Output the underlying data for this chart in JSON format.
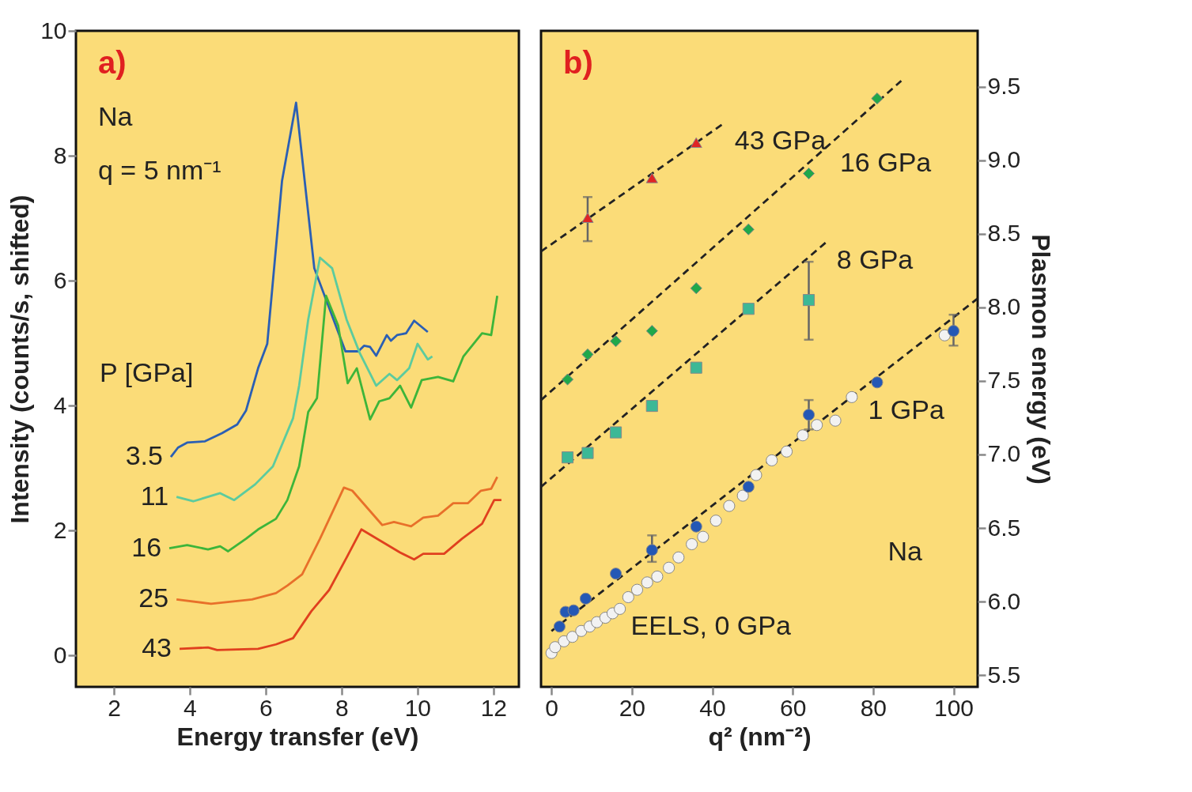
{
  "chart_data": [
    {
      "type": "line",
      "xlabel": "Energy transfer (eV)",
      "ylabel": "Intensity (counts/s, shifted)",
      "legend_title": "P [GPa]",
      "xlim": [
        1,
        12.67
      ],
      "ylim": [
        -0.5,
        10
      ],
      "xticks": [
        2,
        4,
        6,
        8,
        10,
        12
      ],
      "yticks": [
        0,
        2,
        4,
        6,
        8,
        10
      ],
      "annotations": [
        "a)",
        "Na",
        "q = 5 nm⁻¹"
      ],
      "series": [
        {
          "name": "3.5",
          "color": "#2b5fb4",
          "x": [
            3.5,
            3.69,
            3.93,
            4.4,
            4.85,
            5.25,
            5.48,
            5.8,
            6.04,
            6.43,
            6.8,
            7.28,
            8.1,
            8.44,
            8.59,
            8.75,
            8.91,
            9.19,
            9.3,
            9.46,
            9.7,
            9.91,
            10.27
          ],
          "values": [
            3.18,
            3.33,
            3.41,
            3.43,
            3.56,
            3.7,
            3.92,
            4.6,
            4.99,
            7.6,
            8.85,
            6.2,
            4.87,
            4.87,
            4.96,
            4.94,
            4.8,
            5.13,
            5.04,
            5.13,
            5.16,
            5.36,
            5.18
          ]
        },
        {
          "name": "11",
          "color": "#5ccb9e",
          "x": [
            3.65,
            4.09,
            4.8,
            5.17,
            5.72,
            6.19,
            6.72,
            6.88,
            7.12,
            7.43,
            7.75,
            8.13,
            8.48,
            8.91,
            9.26,
            9.46,
            9.78,
            10.0,
            10.27,
            10.39
          ],
          "values": [
            2.54,
            2.47,
            2.6,
            2.49,
            2.74,
            3.03,
            3.8,
            4.32,
            5.38,
            6.37,
            6.2,
            5.38,
            4.84,
            4.32,
            4.51,
            4.41,
            4.6,
            4.99,
            4.74,
            4.79
          ]
        },
        {
          "name": "16",
          "color": "#3db53a",
          "x": [
            3.46,
            3.93,
            4.48,
            4.8,
            5.01,
            5.48,
            5.8,
            6.27,
            6.57,
            6.88,
            7.12,
            7.35,
            7.59,
            7.91,
            8.16,
            8.4,
            8.75,
            8.99,
            9.26,
            9.54,
            9.83,
            10.11,
            10.54,
            10.94,
            11.21,
            11.7,
            11.94,
            12.1
          ],
          "values": [
            1.72,
            1.77,
            1.7,
            1.75,
            1.67,
            1.87,
            2.02,
            2.19,
            2.49,
            3.03,
            3.9,
            4.12,
            5.76,
            5.28,
            4.36,
            4.6,
            3.78,
            4.07,
            4.12,
            4.32,
            3.97,
            4.41,
            4.46,
            4.39,
            4.79,
            5.16,
            5.13,
            5.76
          ]
        },
        {
          "name": "25",
          "color": "#e8702a",
          "x": [
            3.65,
            4.56,
            5.64,
            6.27,
            6.57,
            6.96,
            7.43,
            8.06,
            8.28,
            9.07,
            9.38,
            9.83,
            10.15,
            10.54,
            10.94,
            11.33,
            11.67,
            11.94,
            12.1
          ],
          "values": [
            0.9,
            0.83,
            0.9,
            1.0,
            1.12,
            1.3,
            1.87,
            2.69,
            2.64,
            2.09,
            2.14,
            2.07,
            2.21,
            2.24,
            2.44,
            2.44,
            2.64,
            2.67,
            2.86
          ]
        },
        {
          "name": "43",
          "color": "#e0401e",
          "x": [
            3.73,
            4.48,
            4.72,
            5.8,
            6.27,
            6.72,
            7.2,
            7.67,
            8.14,
            8.52,
            8.99,
            9.54,
            9.91,
            10.15,
            10.7,
            11.17,
            11.7,
            12.02,
            12.21
          ],
          "values": [
            0.11,
            0.13,
            0.09,
            0.11,
            0.18,
            0.28,
            0.71,
            1.05,
            1.58,
            2.02,
            1.85,
            1.65,
            1.54,
            1.63,
            1.63,
            1.87,
            2.11,
            2.49,
            2.49
          ]
        }
      ]
    },
    {
      "type": "scatter",
      "xlabel": "q² (nm⁻²)",
      "ylabel": "Plasmon energy (eV)",
      "xlim": [
        -2.6,
        106
      ],
      "ylim": [
        5.42,
        9.88
      ],
      "xticks": [
        0,
        20,
        40,
        60,
        80,
        100
      ],
      "yticks": [
        {
          "value": 5.5,
          "label": "5.5"
        },
        {
          "value": 6,
          "label": "6.0"
        },
        {
          "value": 6.5,
          "label": "6.5"
        },
        {
          "value": 7,
          "label": "7.0"
        },
        {
          "value": 7.5,
          "label": "7.5"
        },
        {
          "value": 8,
          "label": "8.0"
        },
        {
          "value": 8.5,
          "label": "8.5"
        },
        {
          "value": 9,
          "label": "9.0"
        },
        {
          "value": 9.5,
          "label": "9.5"
        }
      ],
      "annotations": [
        "b)",
        "Na",
        {
          "text": "43 GPa",
          "x": 42.8,
          "y": 9.25
        },
        {
          "text": "16 GPa",
          "x": 69,
          "y": 9.1
        },
        {
          "text": "8 GPa",
          "x": 68.2,
          "y": 8.44
        },
        {
          "text": "1 GPa",
          "x": 76,
          "y": 7.42
        },
        {
          "text": "EELS, 0 GPa",
          "x": 17,
          "y": 5.95
        }
      ],
      "series": [
        {
          "type": "line",
          "color": "#222222",
          "line_style": "dashed",
          "x": [
            -2.6,
            42.8
          ],
          "values": [
            8.38,
            9.25
          ]
        },
        {
          "type": "line",
          "color": "#222222",
          "line_style": "dashed",
          "x": [
            -2.6,
            87
          ],
          "values": [
            7.37,
            9.54
          ]
        },
        {
          "type": "line",
          "color": "#222222",
          "line_style": "dashed",
          "x": [
            -2.6,
            68.2
          ],
          "values": [
            6.78,
            8.44
          ]
        },
        {
          "type": "line",
          "color": "#222222",
          "line_style": "dashed",
          "x": [
            0,
            106
          ],
          "values": [
            5.8,
            8.06
          ]
        },
        {
          "type": "scatter",
          "marker": "circle",
          "color": "#f2f2f2",
          "x": [
            0,
            0.9,
            3.1,
            5.2,
            7.4,
            9.5,
            11.3,
            13.4,
            15.2,
            17,
            19.1,
            21.3,
            23.8,
            26.3,
            29.2,
            31.6,
            34.9,
            37.7,
            40.9,
            44.2,
            47.6,
            50.9,
            54.8,
            58.5,
            62.5,
            66,
            70.6,
            74.7,
            97.8
          ],
          "values": [
            5.65,
            5.69,
            5.73,
            5.76,
            5.8,
            5.83,
            5.86,
            5.89,
            5.92,
            5.95,
            6.03,
            6.08,
            6.13,
            6.17,
            6.23,
            6.3,
            6.39,
            6.44,
            6.55,
            6.65,
            6.72,
            6.86,
            6.96,
            7.02,
            7.13,
            7.2,
            7.23,
            7.39,
            7.81
          ]
        },
        {
          "type": "scatter",
          "marker": "triangle",
          "color": "#e02424",
          "x": [
            9,
            25,
            36
          ],
          "values": [
            8.61,
            8.88,
            9.12
          ],
          "errors": [
            [
              8.45,
              8.75
            ],
            null,
            null
          ]
        },
        {
          "type": "scatter",
          "marker": "diamond",
          "color": "#1fa84a",
          "x": [
            4,
            9,
            16,
            25,
            36,
            49,
            64,
            81
          ],
          "values": [
            7.51,
            7.68,
            7.77,
            7.84,
            8.13,
            8.53,
            8.91,
            9.42
          ]
        },
        {
          "type": "scatter",
          "marker": "square",
          "color": "#3cb896",
          "x": [
            4,
            9,
            16,
            25,
            36,
            49,
            64
          ],
          "values": [
            6.98,
            7.01,
            7.15,
            7.33,
            7.59,
            7.99,
            8.05
          ],
          "errors": [
            null,
            null,
            null,
            null,
            null,
            null,
            [
              7.78,
              8.31
            ]
          ]
        },
        {
          "type": "scatter",
          "marker": "circle",
          "color": "#2458b5",
          "x": [
            2,
            3.5,
            5.5,
            8.5,
            16,
            25,
            36,
            49,
            64,
            81,
            100
          ],
          "values": [
            5.83,
            5.93,
            5.94,
            6.02,
            6.19,
            6.35,
            6.51,
            6.78,
            7.27,
            7.49,
            7.84
          ],
          "errors": [
            null,
            null,
            null,
            null,
            null,
            [
              6.27,
              6.45
            ],
            null,
            null,
            [
              7.17,
              7.37
            ],
            null,
            [
              7.74,
              7.95
            ]
          ]
        }
      ]
    }
  ]
}
